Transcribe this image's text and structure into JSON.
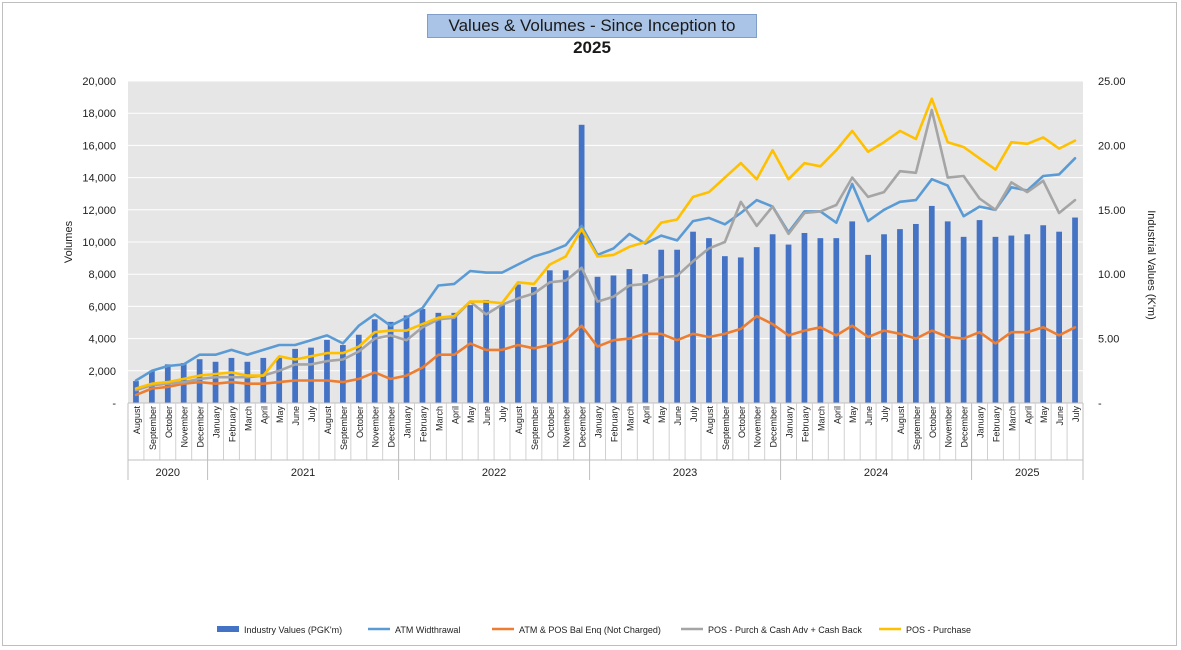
{
  "chart_data": {
    "type": "bar",
    "title": "Values & Volumes - Since Inception to",
    "title_year": "2025",
    "ylabel": "Volumes",
    "y2label": "Industrial Values (K'm)",
    "ylim": [
      0,
      20000
    ],
    "y2lim": [
      0,
      25
    ],
    "yticks": [
      "-",
      "2,000",
      "4,000",
      "6,000",
      "8,000",
      "10,000",
      "12,000",
      "14,000",
      "16,000",
      "18,000",
      "20,000"
    ],
    "y2ticks": [
      "-",
      "5.00",
      "10.00",
      "15.00",
      "20.00",
      "25.00"
    ],
    "grid": true,
    "legend_position": "bottom",
    "months": [
      "August",
      "September",
      "October",
      "November",
      "December",
      "January",
      "February",
      "March",
      "April",
      "May",
      "June",
      "July",
      "August",
      "September",
      "October",
      "November",
      "December",
      "January",
      "February",
      "March",
      "April",
      "May",
      "June",
      "July",
      "August",
      "September",
      "October",
      "November",
      "December",
      "January",
      "February",
      "March",
      "April",
      "May",
      "June",
      "July",
      "August",
      "September",
      "October",
      "November",
      "December",
      "January",
      "February",
      "March",
      "April",
      "May",
      "June",
      "July",
      "August",
      "September",
      "October",
      "November",
      "December",
      "January",
      "February",
      "March",
      "April",
      "May",
      "June",
      "July"
    ],
    "years": [
      {
        "label": "2020",
        "count": 5
      },
      {
        "label": "2021",
        "count": 12
      },
      {
        "label": "2022",
        "count": 12
      },
      {
        "label": "2023",
        "count": 12
      },
      {
        "label": "2024",
        "count": 12
      },
      {
        "label": "2025",
        "count": 7
      }
    ],
    "series": [
      {
        "name": "Industry Values (PGK'm)",
        "type": "bar",
        "axis": "right",
        "color": "#4472c4",
        "values": [
          1.7,
          2.5,
          3.0,
          3.1,
          3.4,
          3.2,
          3.5,
          3.2,
          3.5,
          3.5,
          4.2,
          4.3,
          4.9,
          4.5,
          5.3,
          6.5,
          6.3,
          6.8,
          7.3,
          7.0,
          7.0,
          7.6,
          8.0,
          7.6,
          9.2,
          9.0,
          10.3,
          10.3,
          21.6,
          9.8,
          9.9,
          10.4,
          10.0,
          11.9,
          11.9,
          13.3,
          12.8,
          11.4,
          11.3,
          12.1,
          13.1,
          12.3,
          13.2,
          12.8,
          12.8,
          14.1,
          11.5,
          13.1,
          13.5,
          13.9,
          15.3,
          14.1,
          12.9,
          14.2,
          12.9,
          13.0,
          13.1,
          13.8,
          13.3,
          14.4
        ]
      },
      {
        "name": "ATM Widthrawal",
        "type": "line",
        "axis": "left",
        "color": "#5b9bd5",
        "values": [
          1400,
          2000,
          2300,
          2400,
          3000,
          3000,
          3300,
          3000,
          3300,
          3600,
          3600,
          3900,
          4200,
          3700,
          4800,
          5500,
          4800,
          5300,
          5900,
          7300,
          7400,
          8200,
          8100,
          8100,
          8600,
          9100,
          9400,
          9800,
          11000,
          9200,
          9600,
          10500,
          9900,
          10400,
          10100,
          11300,
          11500,
          11100,
          11800,
          12600,
          12200,
          10600,
          11900,
          11900,
          11200,
          13600,
          11300,
          12000,
          12500,
          12600,
          13900,
          13500,
          11600,
          12200,
          12000,
          13400,
          13200,
          14100,
          14200,
          15200
        ]
      },
      {
        "name": "ATM & POS Bal Enq (Not Charged)",
        "type": "line",
        "axis": "left",
        "color": "#ed7d31",
        "values": [
          500,
          900,
          1000,
          1200,
          1300,
          1200,
          1300,
          1200,
          1200,
          1300,
          1400,
          1400,
          1400,
          1300,
          1500,
          1900,
          1500,
          1700,
          2200,
          3000,
          3000,
          3700,
          3300,
          3300,
          3600,
          3400,
          3600,
          3900,
          4800,
          3500,
          3900,
          4000,
          4300,
          4300,
          3900,
          4300,
          4100,
          4300,
          4600,
          5400,
          4900,
          4200,
          4500,
          4700,
          4200,
          4800,
          4100,
          4500,
          4300,
          4000,
          4500,
          4100,
          4000,
          4400,
          3700,
          4400,
          4400,
          4700,
          4200,
          4700
        ]
      },
      {
        "name": "POS - Purch & Cash Adv + Cash Back",
        "type": "line",
        "axis": "left",
        "color": "#a5a5a5",
        "values": [
          800,
          1100,
          1200,
          1300,
          1500,
          1600,
          1600,
          1600,
          1700,
          2000,
          2400,
          2400,
          2600,
          2700,
          3200,
          4000,
          4200,
          3900,
          4700,
          5200,
          5300,
          6300,
          5500,
          6100,
          6500,
          6800,
          7500,
          7600,
          8400,
          6300,
          6600,
          7300,
          7400,
          7800,
          7900,
          8800,
          9600,
          10000,
          12500,
          11000,
          12200,
          10500,
          11800,
          11900,
          12300,
          14000,
          12800,
          13100,
          14400,
          14300,
          18200,
          14000,
          14100,
          12700,
          12000,
          13700,
          13100,
          13800,
          11800,
          12600
        ]
      },
      {
        "name": "POS - Purchase",
        "type": "line",
        "axis": "left",
        "color": "#ffc000",
        "values": [
          900,
          1200,
          1300,
          1500,
          1700,
          1800,
          1900,
          1700,
          1700,
          2900,
          2700,
          2900,
          3100,
          3100,
          3500,
          4400,
          4500,
          4500,
          4900,
          5300,
          5400,
          6300,
          6300,
          6200,
          7500,
          7400,
          8600,
          9100,
          10800,
          9100,
          9200,
          9700,
          10000,
          11200,
          11400,
          12800,
          13100,
          14000,
          14900,
          13900,
          15700,
          13900,
          14900,
          14700,
          15700,
          16900,
          15600,
          16200,
          16900,
          16400,
          18900,
          16200,
          15900,
          15200,
          14500,
          16200,
          16100,
          16500,
          15800,
          16300
        ]
      }
    ]
  }
}
